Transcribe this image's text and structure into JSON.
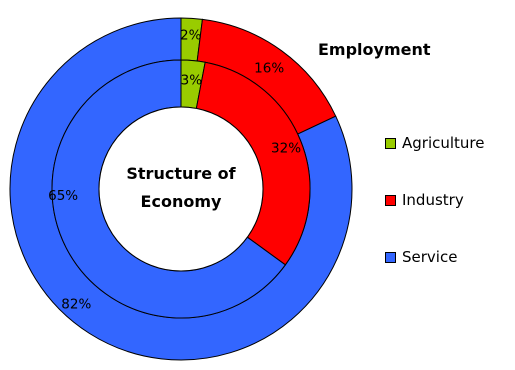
{
  "chart_data": {
    "type": "donut",
    "title_outer": "Employment",
    "title_inner": [
      "Structure of",
      "Economy"
    ],
    "categories": [
      "Agriculture",
      "Industry",
      "Service"
    ],
    "colors": [
      "#99cc00",
      "#ff0000",
      "#3366ff"
    ],
    "series": [
      {
        "ring": "outer",
        "values": [
          2,
          16,
          82
        ],
        "labels": [
          "2%",
          "16%",
          "82%"
        ]
      },
      {
        "ring": "inner",
        "values": [
          3,
          32,
          65
        ],
        "labels": [
          "3%",
          "32%",
          "65%"
        ]
      }
    ],
    "legend_position": "right"
  }
}
